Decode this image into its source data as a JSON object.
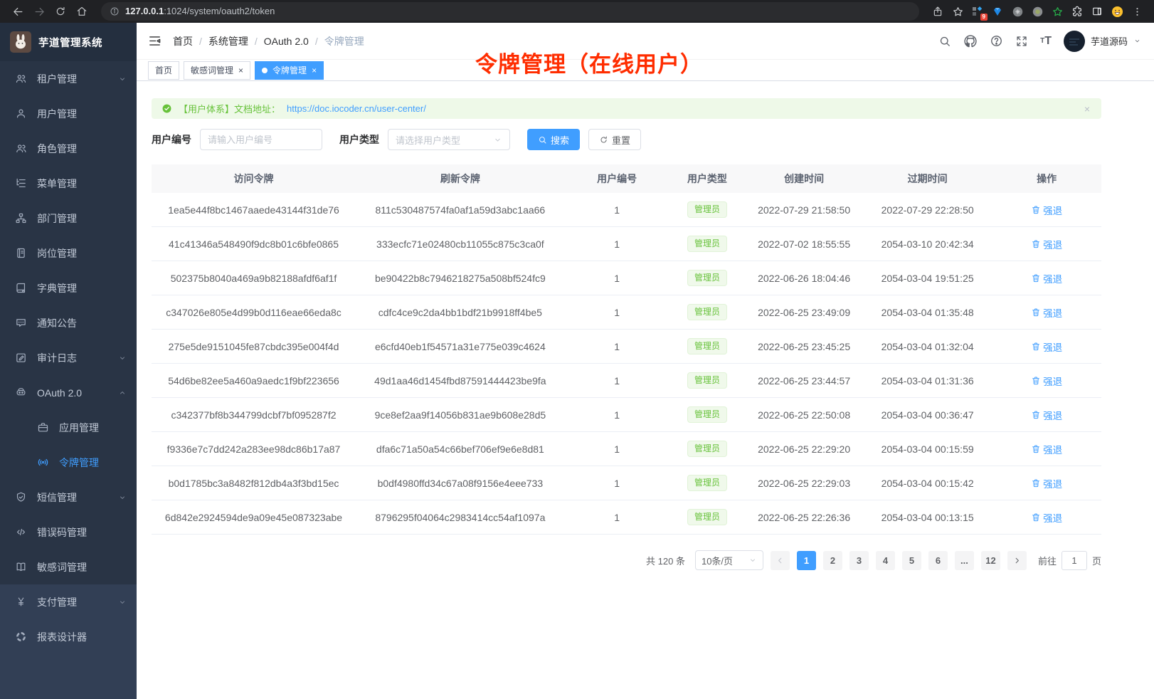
{
  "browser": {
    "url_host": "127.0.0.1",
    "url_path": ":1024/system/oauth2/token",
    "extension_badge": "9"
  },
  "sidebar": {
    "app_title": "芋道管理系统",
    "items": [
      {
        "label": "租户管理",
        "icon": "users-icon",
        "chevron": "down"
      },
      {
        "label": "用户管理",
        "icon": "user-icon"
      },
      {
        "label": "角色管理",
        "icon": "role-icon"
      },
      {
        "label": "菜单管理",
        "icon": "menu-tree-icon"
      },
      {
        "label": "部门管理",
        "icon": "dept-icon"
      },
      {
        "label": "岗位管理",
        "icon": "post-icon"
      },
      {
        "label": "字典管理",
        "icon": "dict-icon"
      },
      {
        "label": "通知公告",
        "icon": "notice-icon"
      },
      {
        "label": "审计日志",
        "icon": "audit-icon",
        "chevron": "down"
      },
      {
        "label": "OAuth 2.0",
        "icon": "oauth-icon",
        "chevron": "up"
      },
      {
        "label": "应用管理",
        "icon": "app-icon",
        "indent": true
      },
      {
        "label": "令牌管理",
        "icon": "token-icon",
        "indent": true,
        "active": true
      },
      {
        "label": "短信管理",
        "icon": "sms-icon",
        "chevron": "down"
      },
      {
        "label": "错误码管理",
        "icon": "errorcode-icon"
      },
      {
        "label": "敏感词管理",
        "icon": "sensitive-icon"
      },
      {
        "label": "支付管理",
        "icon": "pay-icon",
        "chevron": "down",
        "section": "bottom"
      },
      {
        "label": "报表设计器",
        "icon": "report-icon",
        "section": "bottom"
      }
    ]
  },
  "header": {
    "breadcrumb": [
      "首页",
      "系统管理",
      "OAuth 2.0",
      "令牌管理"
    ],
    "username": "芋道源码"
  },
  "tabs": [
    {
      "label": "首页",
      "closable": false,
      "active": false
    },
    {
      "label": "敏感词管理",
      "closable": true,
      "active": false
    },
    {
      "label": "令牌管理",
      "closable": true,
      "active": true
    }
  ],
  "annotation": {
    "text": "令牌管理（在线用户）",
    "color": "#ff2d00"
  },
  "alert": {
    "message": "【用户体系】文档地址：",
    "link": "https://doc.iocoder.cn/user-center/"
  },
  "filters": {
    "user_id_label": "用户编号",
    "user_id_placeholder": "请输入用户编号",
    "user_type_label": "用户类型",
    "user_type_placeholder": "请选择用户类型",
    "search_label": "搜索",
    "reset_label": "重置"
  },
  "table": {
    "columns": [
      "访问令牌",
      "刷新令牌",
      "用户编号",
      "用户类型",
      "创建时间",
      "过期时间",
      "操作"
    ],
    "action_label": "强退",
    "rows": [
      {
        "access_token": "1ea5e44f8bc1467aaede43144f31de76",
        "refresh_token": "811c530487574fa0af1a59d3abc1aa66",
        "user_id": "1",
        "user_type": "管理员",
        "create_time": "2022-07-29 21:58:50",
        "expire_time": "2022-07-29 22:28:50"
      },
      {
        "access_token": "41c41346a548490f9dc8b01c6bfe0865",
        "refresh_token": "333ecfc71e02480cb11055c875c3ca0f",
        "user_id": "1",
        "user_type": "管理员",
        "create_time": "2022-07-02 18:55:55",
        "expire_time": "2054-03-10 20:42:34"
      },
      {
        "access_token": "502375b8040a469a9b82188afdf6af1f",
        "refresh_token": "be90422b8c7946218275a508bf524fc9",
        "user_id": "1",
        "user_type": "管理员",
        "create_time": "2022-06-26 18:04:46",
        "expire_time": "2054-03-04 19:51:25"
      },
      {
        "access_token": "c347026e805e4d99b0d116eae66eda8c",
        "refresh_token": "cdfc4ce9c2da4bb1bdf21b9918ff4be5",
        "user_id": "1",
        "user_type": "管理员",
        "create_time": "2022-06-25 23:49:09",
        "expire_time": "2054-03-04 01:35:48"
      },
      {
        "access_token": "275e5de9151045fe87cbdc395e004f4d",
        "refresh_token": "e6cfd40eb1f54571a31e775e039c4624",
        "user_id": "1",
        "user_type": "管理员",
        "create_time": "2022-06-25 23:45:25",
        "expire_time": "2054-03-04 01:32:04"
      },
      {
        "access_token": "54d6be82ee5a460a9aedc1f9bf223656",
        "refresh_token": "49d1aa46d1454fbd87591444423be9fa",
        "user_id": "1",
        "user_type": "管理员",
        "create_time": "2022-06-25 23:44:57",
        "expire_time": "2054-03-04 01:31:36"
      },
      {
        "access_token": "c342377bf8b344799dcbf7bf095287f2",
        "refresh_token": "9ce8ef2aa9f14056b831ae9b608e28d5",
        "user_id": "1",
        "user_type": "管理员",
        "create_time": "2022-06-25 22:50:08",
        "expire_time": "2054-03-04 00:36:47"
      },
      {
        "access_token": "f9336e7c7dd242a283ee98dc86b17a87",
        "refresh_token": "dfa6c71a50a54c66bef706ef9e6e8d81",
        "user_id": "1",
        "user_type": "管理员",
        "create_time": "2022-06-25 22:29:20",
        "expire_time": "2054-03-04 00:15:59"
      },
      {
        "access_token": "b0d1785bc3a8482f812db4a3f3bd15ec",
        "refresh_token": "b0df4980ffd34c67a08f9156e4eee733",
        "user_id": "1",
        "user_type": "管理员",
        "create_time": "2022-06-25 22:29:03",
        "expire_time": "2054-03-04 00:15:42"
      },
      {
        "access_token": "6d842e2924594de9a09e45e087323abe",
        "refresh_token": "8796295f04064c2983414cc54af1097a",
        "user_id": "1",
        "user_type": "管理员",
        "create_time": "2022-06-25 22:26:36",
        "expire_time": "2054-03-04 00:13:15"
      }
    ]
  },
  "pagination": {
    "total": "共 120 条",
    "page_size": "10条/页",
    "pages": [
      "1",
      "2",
      "3",
      "4",
      "5",
      "6",
      "...",
      "12"
    ],
    "active_page": "1",
    "jump_prefix": "前往",
    "jump_value": "1",
    "jump_suffix": "页"
  },
  "colors": {
    "accent": "#409eff",
    "success": "#67c23a",
    "sidebar": "#293445"
  }
}
